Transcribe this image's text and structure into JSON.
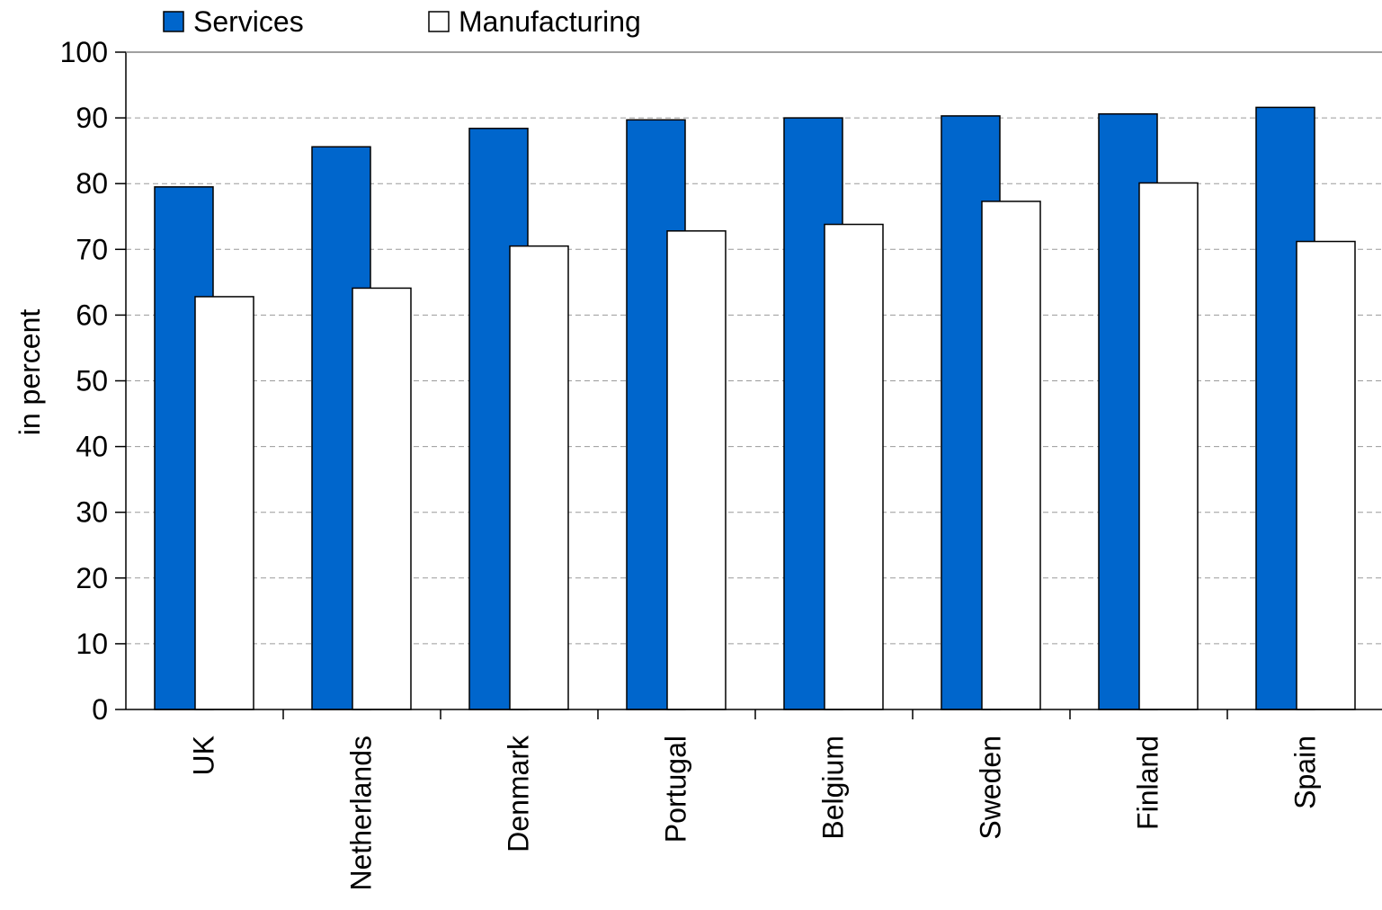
{
  "chart_data": {
    "type": "bar",
    "title": "",
    "xlabel": "",
    "ylabel": "in percent",
    "ylim": [
      0,
      100
    ],
    "yticks": [
      0,
      10,
      20,
      30,
      40,
      50,
      60,
      70,
      80,
      90,
      100
    ],
    "grid": true,
    "legend_position": "top-left",
    "categories": [
      "UK",
      "Netherlands",
      "Denmark",
      "Portugal",
      "Belgium",
      "Sweden",
      "Finland",
      "Spain"
    ],
    "series": [
      {
        "name": "Services",
        "color": "#0066cc",
        "values": [
          79.5,
          85.6,
          88.4,
          89.7,
          90.0,
          90.3,
          90.6,
          91.6
        ]
      },
      {
        "name": "Manufacturing",
        "color": "#ffffff",
        "values": [
          62.8,
          64.1,
          70.5,
          72.8,
          73.8,
          77.3,
          80.1,
          71.2
        ]
      }
    ]
  }
}
